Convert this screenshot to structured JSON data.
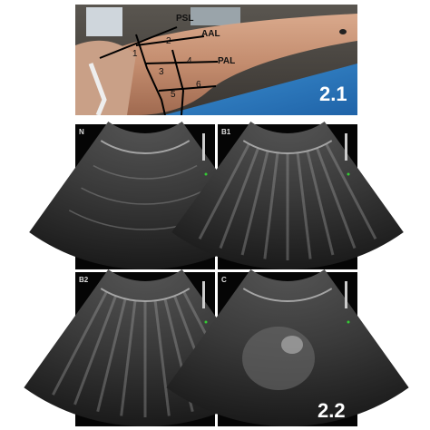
{
  "photo": {
    "lines": [
      "PSL",
      "AAL",
      "PAL"
    ],
    "zones": [
      "1",
      "2",
      "3",
      "4",
      "5",
      "6"
    ],
    "panel_label": "2.1"
  },
  "ultrasound": {
    "panels": [
      "N",
      "B1",
      "B2",
      "C"
    ],
    "panel_label": "2.2"
  }
}
